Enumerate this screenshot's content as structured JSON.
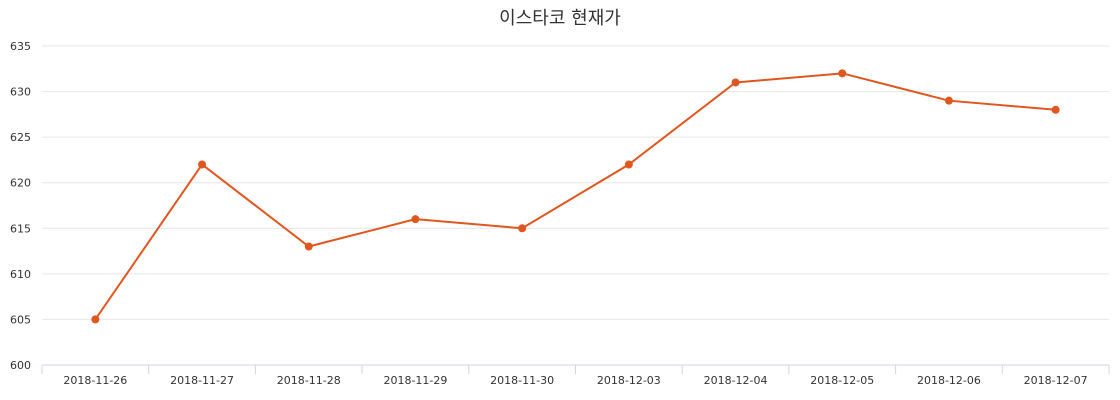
{
  "chart_data": {
    "type": "line",
    "title": "이스타코 현재가",
    "categories": [
      "2018-11-26",
      "2018-11-27",
      "2018-11-28",
      "2018-11-29",
      "2018-11-30",
      "2018-12-03",
      "2018-12-04",
      "2018-12-05",
      "2018-12-06",
      "2018-12-07"
    ],
    "series": [
      {
        "values": [
          605,
          622,
          613,
          616,
          615,
          622,
          631,
          632,
          629,
          628
        ]
      }
    ],
    "ylim": [
      600,
      635
    ],
    "yticks": [
      600,
      605,
      610,
      615,
      620,
      625,
      630,
      635
    ],
    "grid": true,
    "color": "#e0561f"
  }
}
